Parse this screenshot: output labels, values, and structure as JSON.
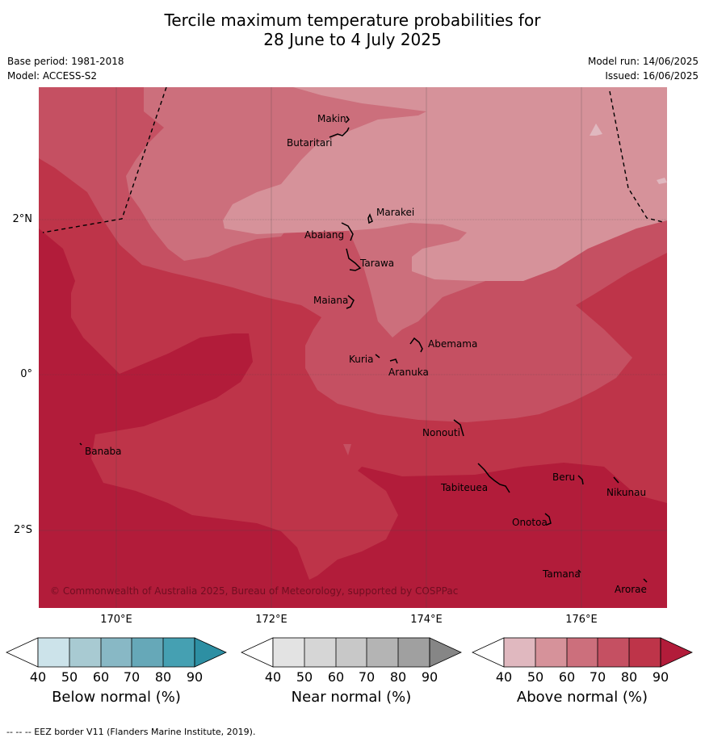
{
  "header": {
    "title_line1": "Tercile maximum temperature probabilities for",
    "title_line2": "28 June to 4 July 2025",
    "base_period": "Base period: 1981-2018",
    "model": "Model: ACCESS-S2",
    "model_run": "Model run: 14/06/2025",
    "issued": "Issued: 16/06/2025"
  },
  "map": {
    "lat_labels": [
      "2°N",
      "0°",
      "2°S"
    ],
    "lon_labels": [
      "170°E",
      "172°E",
      "174°E",
      "176°E"
    ],
    "copyright": "© Commonwealth of Australia 2025, Bureau of Meteorology, supported by COSPPac",
    "places": [
      {
        "name": "Makin"
      },
      {
        "name": "Butaritari"
      },
      {
        "name": "Marakei"
      },
      {
        "name": "Abaiang"
      },
      {
        "name": "Tarawa"
      },
      {
        "name": "Maiana"
      },
      {
        "name": "Abemama"
      },
      {
        "name": "Kuria"
      },
      {
        "name": "Aranuka"
      },
      {
        "name": "Nonouti"
      },
      {
        "name": "Banaba"
      },
      {
        "name": "Beru"
      },
      {
        "name": "Tabiteuea"
      },
      {
        "name": "Nikunau"
      },
      {
        "name": "Onotoa"
      },
      {
        "name": "Tamana"
      },
      {
        "name": "Arorae"
      }
    ],
    "zone_colors": {
      "above_50_60": "#d6929a",
      "above_60_70": "#cc6f7c",
      "above_70_80": "#c55062",
      "above_80_90": "#be3449",
      "above_90": "#b21c3a"
    }
  },
  "legends": [
    {
      "title": "Below normal (%)",
      "ticks": [
        "40",
        "50",
        "60",
        "70",
        "80",
        "90"
      ],
      "colors": [
        "#cce3ea",
        "#a8cad2",
        "#88b8c5",
        "#66a8b8",
        "#45a0b2",
        "#2d8fa3"
      ]
    },
    {
      "title": "Near normal (%)",
      "ticks": [
        "40",
        "50",
        "60",
        "70",
        "80",
        "90"
      ],
      "colors": [
        "#e3e3e3",
        "#d6d6d6",
        "#c8c8c8",
        "#b4b4b4",
        "#a0a0a0",
        "#868686"
      ]
    },
    {
      "title": "Above normal (%)",
      "ticks": [
        "40",
        "50",
        "60",
        "70",
        "80",
        "90"
      ],
      "colors": [
        "#e0b8bf",
        "#d6929a",
        "#cc6f7c",
        "#c55062",
        "#be3449",
        "#b21c3a"
      ]
    }
  ],
  "footnote": "--  --  -- EEZ border V11 (Flanders Marine Institute, 2019)."
}
